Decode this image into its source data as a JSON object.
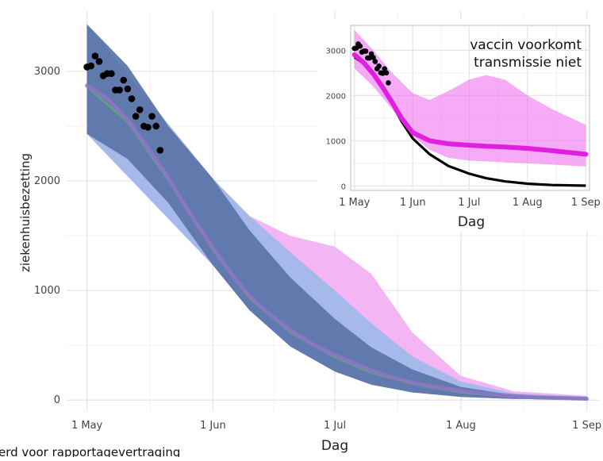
{
  "chart_data": [
    {
      "type": "line",
      "title": "",
      "xlabel": "Dag",
      "ylabel": "ziekenhuisbezetting",
      "ylim": [
        -100,
        3550
      ],
      "xlim": [
        -5,
        126
      ],
      "grid": true,
      "x_ticks": [
        {
          "x": 0,
          "label": "1 May"
        },
        {
          "x": 31,
          "label": "1 Jun"
        },
        {
          "x": 61,
          "label": "1 Jul"
        },
        {
          "x": 92,
          "label": "1 Aug"
        },
        {
          "x": 123,
          "label": "1 Sep"
        }
      ],
      "y_ticks": [
        {
          "y": 0,
          "label": "0"
        },
        {
          "y": 1000,
          "label": "1000"
        },
        {
          "y": 2000,
          "label": "2000"
        },
        {
          "y": 3000,
          "label": "3000"
        }
      ],
      "colors": {
        "band_blue": "#5a74a8",
        "band_light_blue": "#8cbbe8",
        "band_pink": "#f2a8f2",
        "line_purple": "#8f74c8",
        "line_green": "#5ab46a",
        "points": "#000000"
      },
      "band_pink": {
        "x": [
          0,
          31,
          40,
          50,
          61,
          70,
          80,
          92,
          105,
          123
        ],
        "low": [
          2430,
          1230,
          820,
          490,
          260,
          140,
          70,
          28,
          10,
          3
        ],
        "high": [
          3430,
          2020,
          1680,
          1500,
          1400,
          1150,
          620,
          220,
          80,
          40
        ]
      },
      "band_light_blue": {
        "x": [
          0,
          31,
          40,
          50,
          61,
          70,
          80,
          92,
          105,
          123
        ],
        "low": [
          2430,
          1230,
          820,
          490,
          260,
          140,
          70,
          28,
          10,
          3
        ],
        "high": [
          3430,
          2020,
          1680,
          1350,
          1000,
          700,
          400,
          170,
          60,
          30
        ]
      },
      "band_blue": {
        "x": [
          0,
          10,
          20,
          31,
          40,
          50,
          61,
          70,
          80,
          92,
          105,
          123
        ],
        "low": [
          2430,
          2200,
          1800,
          1230,
          820,
          490,
          260,
          140,
          70,
          28,
          10,
          3
        ],
        "high": [
          3430,
          3050,
          2500,
          2020,
          1550,
          1120,
          740,
          480,
          280,
          120,
          45,
          20
        ]
      },
      "series": [
        {
          "x": [
            0,
            5,
            10,
            15,
            20,
            25,
            31,
            36,
            40,
            45,
            50,
            55,
            61,
            66,
            70,
            75,
            80,
            86,
            92,
            100,
            110,
            123
          ],
          "values": [
            2870,
            2750,
            2560,
            2300,
            2030,
            1720,
            1390,
            1130,
            950,
            780,
            640,
            520,
            410,
            330,
            270,
            210,
            160,
            120,
            85,
            50,
            25,
            12
          ]
        },
        {
          "x": [
            0,
            10,
            20,
            31,
            40,
            50,
            61,
            70,
            80,
            92,
            105,
            123
          ],
          "values": [
            2860,
            2540,
            2010,
            1370,
            930,
            620,
            390,
            250,
            150,
            70,
            30,
            8
          ]
        }
      ],
      "points": {
        "x": [
          0,
          1,
          2,
          3,
          4,
          5,
          6,
          7,
          8,
          9,
          10,
          11,
          12,
          13,
          14,
          15,
          16,
          17,
          18
        ],
        "values": [
          3040,
          3050,
          3140,
          3090,
          2960,
          2980,
          2980,
          2830,
          2830,
          2920,
          2840,
          2750,
          2590,
          2650,
          2500,
          2490,
          2590,
          2500,
          2280
        ]
      }
    },
    {
      "type": "line",
      "title": "vaccin voorkomt\ntransmissie niet",
      "xlabel": "Dag",
      "ylabel": "",
      "ylim": [
        -100,
        3550
      ],
      "xlim": [
        -2,
        125
      ],
      "grid": true,
      "x_ticks": [
        {
          "x": 0,
          "label": "1 May"
        },
        {
          "x": 31,
          "label": "1 Jun"
        },
        {
          "x": 61,
          "label": "1 Jul"
        },
        {
          "x": 92,
          "label": "1 Aug"
        },
        {
          "x": 123,
          "label": "1 Sep"
        }
      ],
      "y_ticks": [
        {
          "y": 0,
          "label": "0"
        },
        {
          "y": 1000,
          "label": "1000"
        },
        {
          "y": 2000,
          "label": "2000"
        },
        {
          "y": 3000,
          "label": "3000"
        }
      ],
      "colors": {
        "band": "#ee66ee",
        "line_magenta": "#e020e0",
        "line_black": "#000000",
        "points": "#000000"
      },
      "band": {
        "x": [
          0,
          10,
          20,
          31,
          40,
          50,
          61,
          70,
          80,
          92,
          105,
          123
        ],
        "low": [
          2600,
          2200,
          1700,
          1100,
          800,
          620,
          560,
          540,
          520,
          500,
          470,
          430
        ],
        "high": [
          3450,
          3000,
          2500,
          2050,
          1900,
          2100,
          2350,
          2450,
          2350,
          2000,
          1700,
          1350
        ]
      },
      "series": [
        {
          "name": "",
          "x": [
            0,
            5,
            10,
            15,
            20,
            25,
            31,
            40,
            50,
            61,
            70,
            80,
            92,
            105,
            123
          ],
          "values": [
            2900,
            2720,
            2480,
            2180,
            1850,
            1500,
            1180,
            1000,
            930,
            900,
            880,
            860,
            830,
            780,
            700
          ]
        },
        {
          "name": "",
          "x": [
            0,
            5,
            10,
            15,
            20,
            25,
            31,
            40,
            50,
            61,
            70,
            80,
            92,
            105,
            123
          ],
          "values": [
            2850,
            2700,
            2480,
            2180,
            1820,
            1430,
            1050,
            700,
            440,
            270,
            170,
            100,
            50,
            20,
            5
          ]
        }
      ],
      "points": {
        "x": [
          0,
          1,
          2,
          3,
          4,
          5,
          6,
          7,
          8,
          9,
          10,
          11,
          12,
          13,
          14,
          15,
          16,
          17,
          18
        ],
        "values": [
          3040,
          3050,
          3140,
          3090,
          2960,
          2980,
          2980,
          2830,
          2830,
          2920,
          2840,
          2750,
          2590,
          2650,
          2500,
          2490,
          2590,
          2500,
          2280
        ]
      }
    }
  ],
  "caption": {
    "text": "erd voor rapportagevertraging"
  }
}
